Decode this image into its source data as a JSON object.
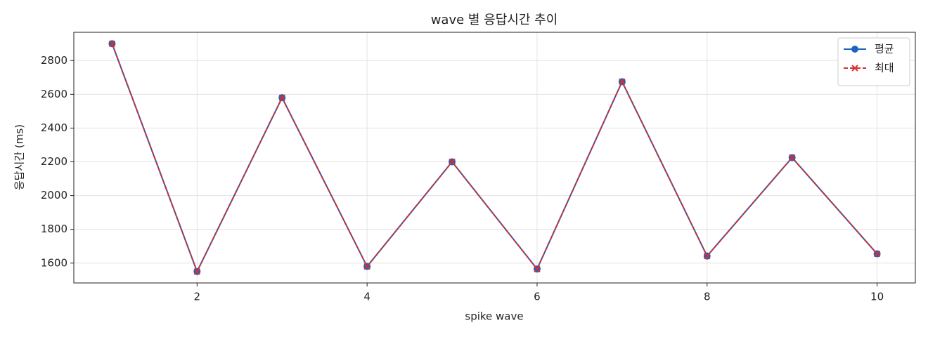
{
  "chart_data": {
    "type": "line",
    "title": "wave 별 응답시간 추이",
    "xlabel": "spike wave",
    "ylabel": "응답시간 (ms)",
    "x": [
      1,
      2,
      3,
      4,
      5,
      6,
      7,
      8,
      9,
      10
    ],
    "series": [
      {
        "name": "평균",
        "color": "#1f63c0",
        "marker": "o",
        "dash": "solid",
        "values": [
          2900,
          1550,
          2580,
          1580,
          2200,
          1565,
          2675,
          1642,
          2225,
          1655
        ]
      },
      {
        "name": "최대",
        "color": "#d03030",
        "marker": "x",
        "dash": "dashed",
        "values": [
          2900,
          1550,
          2580,
          1580,
          2200,
          1565,
          2675,
          1642,
          2225,
          1655
        ]
      }
    ],
    "xlim": [
      0.55,
      10.45
    ],
    "xticks": [
      2,
      4,
      6,
      8,
      10
    ],
    "ylim": [
      1482.5,
      2967.5
    ],
    "yticks": [
      1600,
      1800,
      2000,
      2200,
      2400,
      2600,
      2800
    ],
    "grid": true,
    "legend": "upper right"
  }
}
